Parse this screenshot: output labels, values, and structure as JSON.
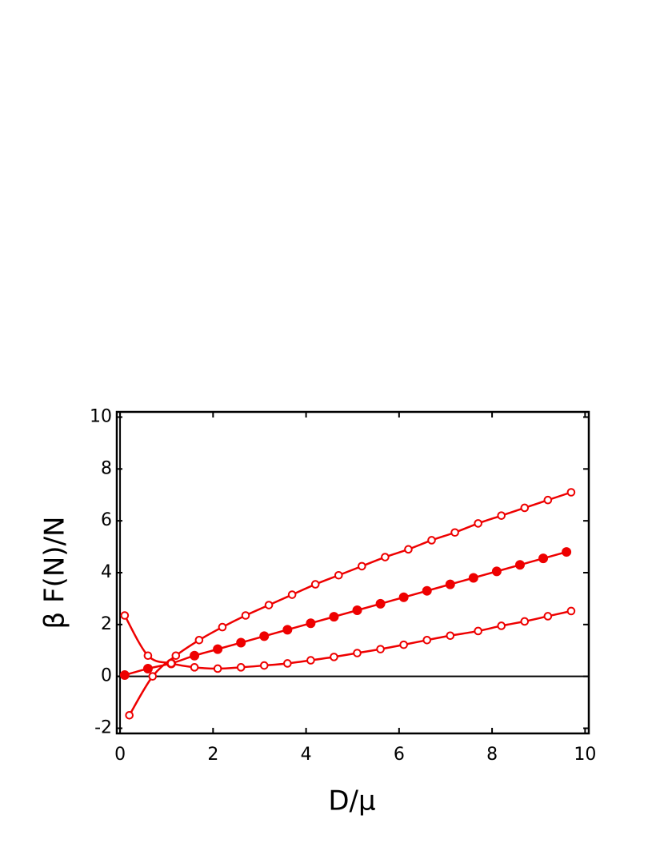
{
  "chart_data": {
    "type": "line",
    "xlabel": "D/μ",
    "ylabel": "β F(N)/N",
    "xlim": [
      -0.07,
      10.08
    ],
    "ylim": [
      -2.2,
      10.2
    ],
    "xticks": [
      0,
      2,
      4,
      6,
      8,
      10
    ],
    "yticks": [
      -2,
      0,
      2,
      4,
      6,
      8,
      10
    ],
    "grid": false,
    "zero_lines": true,
    "series": [
      {
        "color": "#ee0000",
        "filled": false,
        "x": [
          0.2,
          0.7,
          1.2,
          1.7,
          2.2,
          2.7,
          3.2,
          3.7,
          4.2,
          4.7,
          5.2,
          5.7,
          6.2,
          6.7,
          7.2,
          7.7,
          8.2,
          8.7,
          9.2,
          9.7
        ],
        "values": [
          -1.5,
          0,
          0.8,
          1.4,
          1.9,
          2.35,
          2.75,
          3.15,
          3.55,
          3.9,
          4.25,
          4.6,
          4.9,
          5.25,
          5.55,
          5.9,
          6.2,
          6.5,
          6.8,
          7.1
        ]
      },
      {
        "color": "#ee0000",
        "filled": true,
        "x": [
          0.1,
          0.6,
          1.1,
          1.6,
          2.1,
          2.6,
          3.1,
          3.6,
          4.1,
          4.6,
          5.1,
          5.6,
          6.1,
          6.6,
          7.1,
          7.6,
          8.1,
          8.6,
          9.1,
          9.6
        ],
        "values": [
          0.05,
          0.3,
          0.5,
          0.8,
          1.05,
          1.3,
          1.55,
          1.8,
          2.05,
          2.3,
          2.55,
          2.8,
          3.05,
          3.3,
          3.55,
          3.8,
          4.05,
          4.3,
          4.55,
          4.8
        ]
      },
      {
        "color": "#ee0000",
        "filled": false,
        "x": [
          0.1,
          0.6,
          1.1,
          1.6,
          2.1,
          2.6,
          3.1,
          3.6,
          4.1,
          4.6,
          5.1,
          5.6,
          6.1,
          6.6,
          7.1,
          7.7,
          8.2,
          8.7,
          9.2,
          9.7
        ],
        "values": [
          2.35,
          0.8,
          0.5,
          0.35,
          0.3,
          0.35,
          0.42,
          0.5,
          0.62,
          0.75,
          0.9,
          1.05,
          1.22,
          1.4,
          1.57,
          1.75,
          1.95,
          2.12,
          2.32,
          2.52
        ]
      }
    ]
  }
}
